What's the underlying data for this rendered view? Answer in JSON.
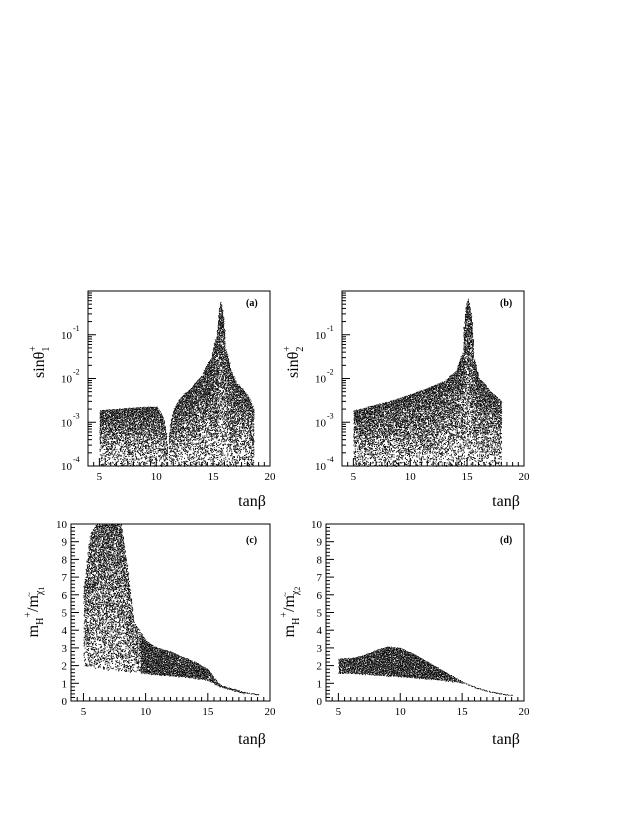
{
  "chart_data": [
    {
      "id": "a",
      "type": "scatter",
      "panel_label": "(a)",
      "ylabel": {
        "main": "sinθ",
        "sub": "1",
        "sup": "+"
      },
      "xlabel": "tanβ",
      "xlim": [
        4,
        20
      ],
      "ylim": [
        0.0001,
        1
      ],
      "yscale": "log",
      "x_ticks": [
        5,
        10,
        15,
        20
      ],
      "y_ticks": [
        {
          "label": "10",
          "exp": "-4",
          "value": 0.0001
        },
        {
          "label": "10",
          "exp": "-3",
          "value": 0.001
        },
        {
          "label": "10",
          "exp": "-2",
          "value": 0.01
        },
        {
          "label": "10",
          "exp": "-1",
          "value": 0.1
        }
      ],
      "bands": [
        {
          "x": [
            5,
            6,
            7,
            8,
            9,
            10,
            10.6,
            10.9
          ],
          "y_low": [
            0.0001,
            0.0001,
            0.0001,
            0.0001,
            0.0001,
            0.0001,
            0.0001,
            0.0001
          ],
          "y_high": [
            0.0019,
            0.002,
            0.0021,
            0.0022,
            0.0023,
            0.0023,
            0.0012,
            0.0003
          ]
        },
        {
          "x": [
            11.1,
            11.5,
            12,
            13,
            14,
            14.8,
            15.3,
            15.6,
            16,
            16.5,
            17,
            18,
            18.5
          ],
          "y_low": [
            0.0001,
            0.0001,
            0.0001,
            0.0001,
            0.0001,
            0.0001,
            0.0001,
            0.0001,
            0.0001,
            0.0001,
            0.0001,
            0.0001,
            0.0001
          ],
          "y_high": [
            0.0006,
            0.002,
            0.0035,
            0.006,
            0.012,
            0.03,
            0.1,
            0.6,
            0.05,
            0.015,
            0.008,
            0.004,
            0.002
          ]
        }
      ]
    },
    {
      "id": "b",
      "type": "scatter",
      "panel_label": "(b)",
      "ylabel": {
        "main": "sinθ",
        "sub": "2",
        "sup": "+"
      },
      "xlabel": "tanβ",
      "xlim": [
        4,
        20
      ],
      "ylim": [
        0.0001,
        1
      ],
      "yscale": "log",
      "x_ticks": [
        5,
        10,
        15,
        20
      ],
      "y_ticks": [
        {
          "label": "10",
          "exp": "-4",
          "value": 0.0001
        },
        {
          "label": "10",
          "exp": "-3",
          "value": 0.001
        },
        {
          "label": "10",
          "exp": "-2",
          "value": 0.01
        },
        {
          "label": "10",
          "exp": "-1",
          "value": 0.1
        }
      ],
      "bands": [
        {
          "x": [
            5,
            6,
            7,
            8,
            9,
            10,
            11,
            12,
            13,
            14,
            14.6,
            15,
            15.5,
            16,
            17,
            18
          ],
          "y_low": [
            0.0001,
            0.0001,
            0.0001,
            0.0001,
            0.0001,
            0.0001,
            0.0001,
            0.0001,
            0.0001,
            0.0001,
            0.0001,
            0.0001,
            0.0001,
            0.0001,
            0.0001,
            0.0001
          ],
          "y_high": [
            0.0019,
            0.0022,
            0.0026,
            0.003,
            0.0036,
            0.0045,
            0.0055,
            0.007,
            0.009,
            0.015,
            0.04,
            0.7,
            0.03,
            0.01,
            0.005,
            0.003
          ]
        }
      ]
    },
    {
      "id": "c",
      "type": "scatter",
      "panel_label": "(c)",
      "ylabel": {
        "main": "m",
        "sub1": "H",
        "sup1": "+",
        "sep": "/m",
        "sub2": "χ",
        "sub2b": "1",
        "sup2": "~"
      },
      "xlabel": "tanβ",
      "xlim": [
        4,
        20
      ],
      "ylim": [
        0,
        10
      ],
      "yscale": "linear",
      "x_ticks": [
        5,
        10,
        15,
        20
      ],
      "y_ticks": [
        0,
        1,
        2,
        3,
        4,
        5,
        6,
        7,
        8,
        9,
        10
      ],
      "bands": [
        {
          "x": [
            5,
            5.5,
            6,
            7,
            7.5,
            8,
            8.5,
            9,
            10,
            11,
            12,
            13,
            14,
            15,
            15.5,
            16,
            17,
            18,
            19
          ],
          "y_low": [
            2.0,
            1.95,
            1.9,
            1.8,
            1.75,
            1.7,
            1.68,
            1.65,
            1.58,
            1.5,
            1.45,
            1.38,
            1.3,
            1.2,
            1.0,
            0.8,
            0.6,
            0.45,
            0.35
          ],
          "y_high": [
            6.5,
            9.5,
            10,
            10,
            10,
            10,
            7.5,
            4.5,
            3.4,
            3.0,
            2.8,
            2.5,
            2.2,
            1.8,
            1.3,
            0.9,
            0.7,
            0.5,
            0.4
          ]
        }
      ]
    },
    {
      "id": "d",
      "type": "scatter",
      "panel_label": "(d)",
      "ylabel": {
        "main": "m",
        "sub1": "H",
        "sup1": "+",
        "sep": "/m",
        "sub2": "χ",
        "sub2b": "2",
        "sup2": "~"
      },
      "xlabel": "tanβ",
      "xlim": [
        4,
        20
      ],
      "ylim": [
        0,
        10
      ],
      "yscale": "linear",
      "x_ticks": [
        5,
        10,
        15,
        20
      ],
      "y_ticks": [
        0,
        1,
        2,
        3,
        4,
        5,
        6,
        7,
        8,
        9,
        10
      ],
      "bands": [
        {
          "x": [
            5,
            6,
            7,
            8,
            9,
            10,
            11,
            12,
            13,
            14,
            15,
            16,
            17,
            18,
            19
          ],
          "y_low": [
            1.6,
            1.6,
            1.55,
            1.5,
            1.45,
            1.4,
            1.35,
            1.3,
            1.25,
            1.15,
            1.05,
            0.8,
            0.6,
            0.45,
            0.35
          ],
          "y_high": [
            2.4,
            2.45,
            2.6,
            2.9,
            3.1,
            3.0,
            2.7,
            2.3,
            1.9,
            1.5,
            1.1,
            0.8,
            0.6,
            0.45,
            0.35
          ]
        }
      ]
    }
  ]
}
